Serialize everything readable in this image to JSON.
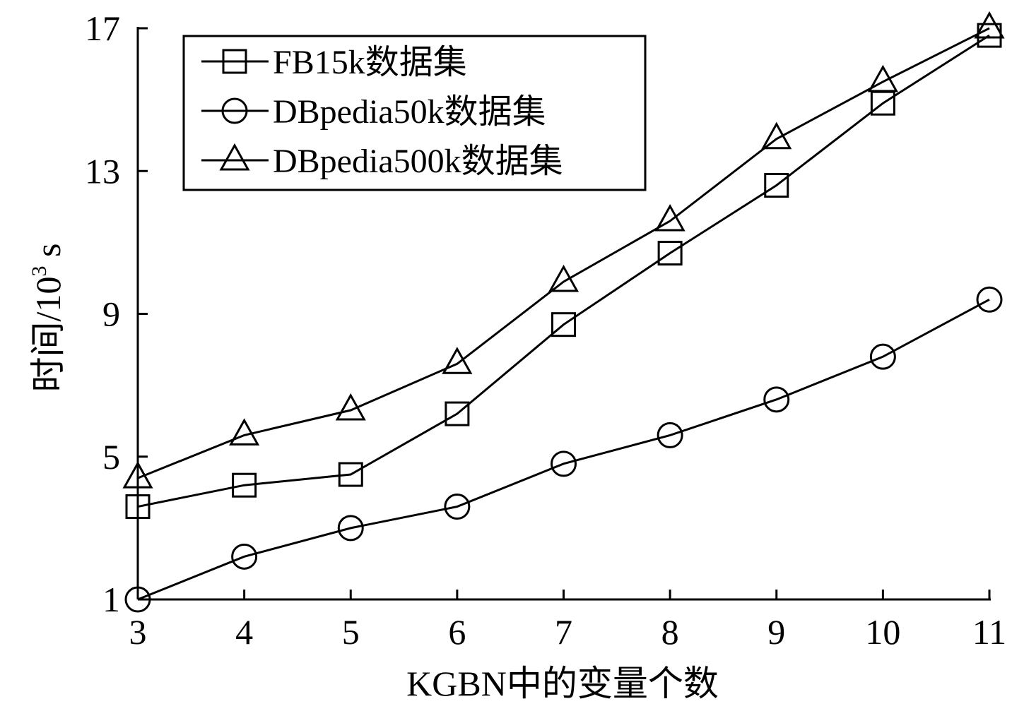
{
  "chart_data": {
    "type": "line",
    "title": "",
    "xlabel": "KGBN中的变量个数",
    "ylabel_main": "时间/10",
    "ylabel_sup": "3",
    "ylabel_unit": " s",
    "x": [
      3,
      4,
      5,
      6,
      7,
      8,
      9,
      10,
      11
    ],
    "xticks": [
      "3",
      "4",
      "5",
      "6",
      "7",
      "8",
      "9",
      "10",
      "11"
    ],
    "xlim": [
      3,
      11
    ],
    "yticks": [
      "1",
      "5",
      "9",
      "13",
      "17"
    ],
    "ytick_values": [
      1,
      5,
      9,
      13,
      17
    ],
    "ylim": [
      1,
      17
    ],
    "grid": false,
    "legend_position": "top-left",
    "series": [
      {
        "name": "FB15k数据集",
        "marker": "square",
        "values": [
          3.6,
          4.2,
          4.5,
          6.2,
          8.7,
          10.7,
          12.6,
          14.9,
          16.8
        ]
      },
      {
        "name": "DBpedia50k数据集",
        "marker": "circle",
        "values": [
          1.0,
          2.2,
          3.0,
          3.6,
          4.8,
          5.6,
          6.6,
          7.8,
          9.4
        ]
      },
      {
        "name": "DBpedia500k数据集",
        "marker": "triangle",
        "values": [
          4.4,
          5.6,
          6.3,
          7.6,
          9.9,
          11.6,
          13.9,
          15.5,
          17.0
        ]
      }
    ]
  }
}
